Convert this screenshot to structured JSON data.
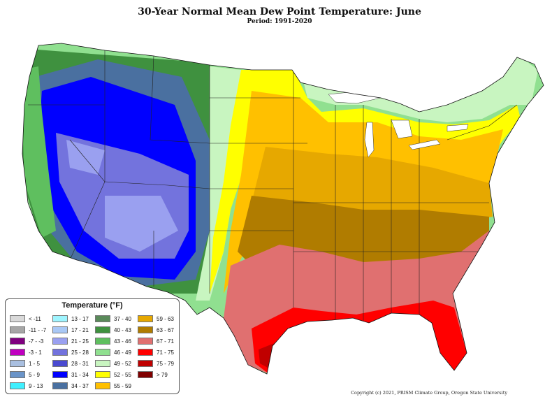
{
  "title": "30-Year Normal Mean Dew Point Temperature: June",
  "period": "Period: 1991-2020",
  "legend": {
    "title": "Temperature (°F)",
    "items": [
      {
        "label": "< -11",
        "color": "#d9d9d9"
      },
      {
        "label": "-11 - -7",
        "color": "#a6a6a6"
      },
      {
        "label": "-7 - -3",
        "color": "#7f007f"
      },
      {
        "label": "-3 - 1",
        "color": "#c000c0"
      },
      {
        "label": "1 - 5",
        "color": "#a9bfe0"
      },
      {
        "label": "5 - 9",
        "color": "#6a94c8"
      },
      {
        "label": "9 - 13",
        "color": "#3ff0ff"
      },
      {
        "label": "13 - 17",
        "color": "#9ff5ff"
      },
      {
        "label": "17 - 21",
        "color": "#a9c8f5"
      },
      {
        "label": "21 - 25",
        "color": "#9aa0f0"
      },
      {
        "label": "25 - 28",
        "color": "#7373dd"
      },
      {
        "label": "28 - 31",
        "color": "#4a4ad0"
      },
      {
        "label": "31 - 34",
        "color": "#0000ff"
      },
      {
        "label": "34 - 37",
        "color": "#4a70a0"
      },
      {
        "label": "37 - 40",
        "color": "#5a8a5a"
      },
      {
        "label": "40 - 43",
        "color": "#3f913f"
      },
      {
        "label": "43 - 46",
        "color": "#5fbf5f"
      },
      {
        "label": "46 - 49",
        "color": "#90e090"
      },
      {
        "label": "49 - 52",
        "color": "#c8f5c0"
      },
      {
        "label": "52 - 55",
        "color": "#ffff00"
      },
      {
        "label": "55 - 59",
        "color": "#ffc000"
      },
      {
        "label": "59 - 63",
        "color": "#e6a800"
      },
      {
        "label": "63 - 67",
        "color": "#b07c00"
      },
      {
        "label": "67 - 71",
        "color": "#e07070"
      },
      {
        "label": "71 - 75",
        "color": "#ff0000"
      },
      {
        "label": "75 - 79",
        "color": "#c00000"
      },
      {
        "label": "> 79",
        "color": "#800000"
      }
    ]
  },
  "copyright": "Copyright (c) 2021, PRISM Climate Group, Oregon State University"
}
